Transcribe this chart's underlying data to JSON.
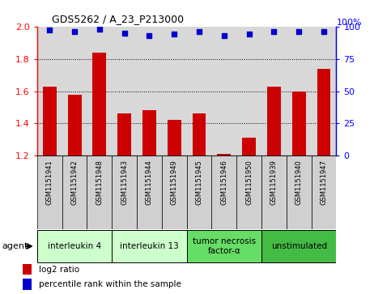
{
  "title": "GDS5262 / A_23_P213000",
  "samples": [
    "GSM1151941",
    "GSM1151942",
    "GSM1151948",
    "GSM1151943",
    "GSM1151944",
    "GSM1151949",
    "GSM1151945",
    "GSM1151946",
    "GSM1151950",
    "GSM1151939",
    "GSM1151940",
    "GSM1151947"
  ],
  "log2_ratio": [
    1.63,
    1.58,
    1.84,
    1.46,
    1.48,
    1.42,
    1.46,
    1.21,
    1.31,
    1.63,
    1.6,
    1.74
  ],
  "percentile_rank": [
    97,
    96,
    98,
    95,
    93,
    94,
    96,
    93,
    94,
    96,
    96,
    96
  ],
  "ylim_left": [
    1.2,
    2.0
  ],
  "ylim_right": [
    0,
    100
  ],
  "bar_color": "#cc0000",
  "dot_color": "#0000cc",
  "groups": [
    {
      "label": "interleukin 4",
      "start": 0,
      "end": 3,
      "color": "#ccffcc"
    },
    {
      "label": "interleukin 13",
      "start": 3,
      "end": 6,
      "color": "#ccffcc"
    },
    {
      "label": "tumor necrosis\nfactor-α",
      "start": 6,
      "end": 9,
      "color": "#66dd66"
    },
    {
      "label": "unstimulated",
      "start": 9,
      "end": 12,
      "color": "#44bb44"
    }
  ],
  "legend_items": [
    {
      "label": "log2 ratio",
      "color": "#cc0000"
    },
    {
      "label": "percentile rank within the sample",
      "color": "#0000cc"
    }
  ],
  "agent_label": "agent",
  "left_yticks": [
    1.2,
    1.4,
    1.6,
    1.8,
    2.0
  ],
  "right_yticks": [
    0,
    25,
    50,
    75,
    100
  ],
  "dotted_lines": [
    1.4,
    1.6,
    1.8
  ],
  "background_color": "#ffffff",
  "plot_bg_color": "#d8d8d8",
  "sample_box_color": "#d0d0d0"
}
